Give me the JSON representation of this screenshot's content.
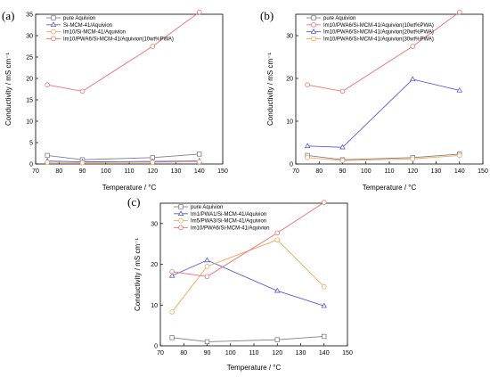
{
  "chart_data": [
    {
      "panel": "(a)",
      "type": "line",
      "xlabel": "Temperature / °C",
      "ylabel": "Conductivity / mS cm⁻¹",
      "xlim": [
        70,
        150
      ],
      "ylim": [
        0,
        35
      ],
      "xticks": [
        70,
        80,
        90,
        100,
        110,
        120,
        130,
        140,
        150
      ],
      "yticks": [
        0,
        5,
        10,
        15,
        20,
        25,
        30,
        35
      ],
      "x": [
        75,
        90,
        120,
        140
      ],
      "legend_position": "top-left",
      "series": [
        {
          "name": "pure Aquivion",
          "color": "#7f7f7f",
          "marker": "square",
          "values": [
            2.0,
            1.0,
            1.5,
            2.3
          ]
        },
        {
          "name": "Si-MCM-41/Aquivion",
          "color": "#5a5adf",
          "marker": "triangle",
          "values": [
            0.7,
            0.5,
            0.6,
            0.7
          ]
        },
        {
          "name": "Im10/Si-MCM-41/Aquivion",
          "color": "#f2a65a",
          "marker": "circle",
          "values": [
            0.4,
            0.3,
            0.4,
            0.5
          ]
        },
        {
          "name": "Im10/PWA6/Si-MCM-41/Aquivion(10wt%PWA)",
          "color": "#f07070",
          "marker": "circle",
          "values": [
            18.5,
            17.0,
            27.5,
            35.5
          ]
        }
      ]
    },
    {
      "panel": "(b)",
      "type": "line",
      "xlabel": "Temperature / °C",
      "ylabel": "Conductivity / mS cm⁻¹",
      "xlim": [
        70,
        150
      ],
      "ylim": [
        0,
        35
      ],
      "xticks": [
        70,
        80,
        90,
        100,
        110,
        120,
        130,
        140,
        150
      ],
      "yticks": [
        0,
        10,
        20,
        30
      ],
      "x": [
        75,
        90,
        120,
        140
      ],
      "legend_position": "top-left",
      "series": [
        {
          "name": "pure Aquivion",
          "color": "#7f7f7f",
          "marker": "square",
          "values": [
            2.0,
            1.0,
            1.5,
            2.3
          ]
        },
        {
          "name": "Im10/PWA6/Si-MCM-41/Aquivion(10wt%PWA)",
          "color": "#f07070",
          "marker": "circle",
          "values": [
            18.5,
            17.0,
            27.5,
            35.5
          ]
        },
        {
          "name": "Im10/PWA6/Si-MCM-41/Aquivion(20wt%PWA)",
          "color": "#5a5adf",
          "marker": "triangle",
          "values": [
            4.2,
            3.9,
            19.8,
            17.2
          ]
        },
        {
          "name": "Im10/PWA6/Si-MCM-41/Aquivion(30wt%PWA)",
          "color": "#f2a65a",
          "marker": "circle",
          "values": [
            1.5,
            0.8,
            1.2,
            2.0
          ]
        }
      ]
    },
    {
      "panel": "(c)",
      "type": "line",
      "xlabel": "Temperature / °C",
      "ylabel": "Conductivity / mS cm⁻¹",
      "xlim": [
        70,
        150
      ],
      "ylim": [
        0,
        35
      ],
      "xticks": [
        70,
        80,
        90,
        100,
        110,
        120,
        130,
        140,
        150
      ],
      "yticks": [
        0,
        10,
        20,
        30
      ],
      "x": [
        75,
        90,
        120,
        140
      ],
      "legend_position": "top-left",
      "series": [
        {
          "name": "pure Aquivion",
          "color": "#7f7f7f",
          "marker": "square",
          "values": [
            2.0,
            1.0,
            1.5,
            2.3
          ]
        },
        {
          "name": "Im1/PWA1/Si-MCM-41/Aquivion",
          "color": "#5a5adf",
          "marker": "triangle",
          "values": [
            17.2,
            21.0,
            13.5,
            9.8
          ]
        },
        {
          "name": "Im5/PWA3/Si-MCM-41/Aquivion",
          "color": "#f2a65a",
          "marker": "circle",
          "values": [
            8.3,
            19.5,
            26.0,
            14.5
          ]
        },
        {
          "name": "Im10/PWA6/Si-MCM-41/Aquivion",
          "color": "#f07070",
          "marker": "circle",
          "values": [
            18.2,
            17.0,
            27.7,
            35.2
          ]
        }
      ]
    }
  ]
}
